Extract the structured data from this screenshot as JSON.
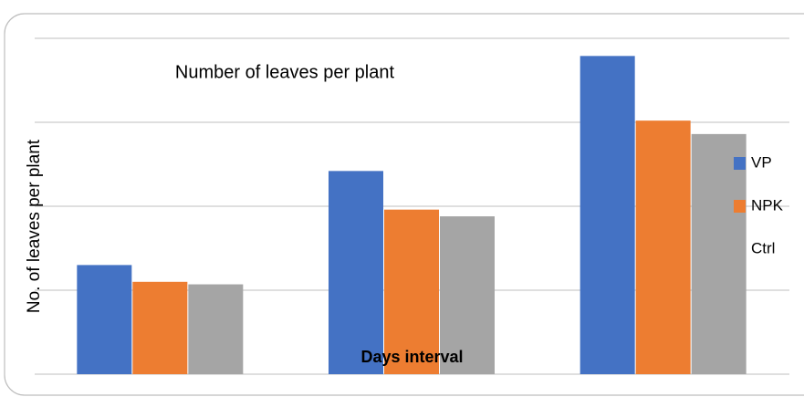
{
  "chart_data": {
    "type": "bar",
    "title": "Number of leaves per plant",
    "y_label": "No. of leaves per plant",
    "x_label": "Days interval",
    "categories": [
      null,
      null,
      null
    ],
    "series": [
      {
        "name": "VP",
        "color": "#4472c4",
        "values": [
          1.3,
          2.42,
          3.79
        ]
      },
      {
        "name": "NPK",
        "color": "#ed7d31",
        "values": [
          1.1,
          1.96,
          3.02
        ]
      },
      {
        "name": "Ctrl",
        "color": "#a5a5a5",
        "values": [
          1.07,
          1.88,
          2.86
        ]
      }
    ],
    "ylim": [
      0,
      4
    ],
    "yticks": [
      0,
      1,
      2,
      3,
      4
    ],
    "grid": true,
    "legend": "right"
  }
}
